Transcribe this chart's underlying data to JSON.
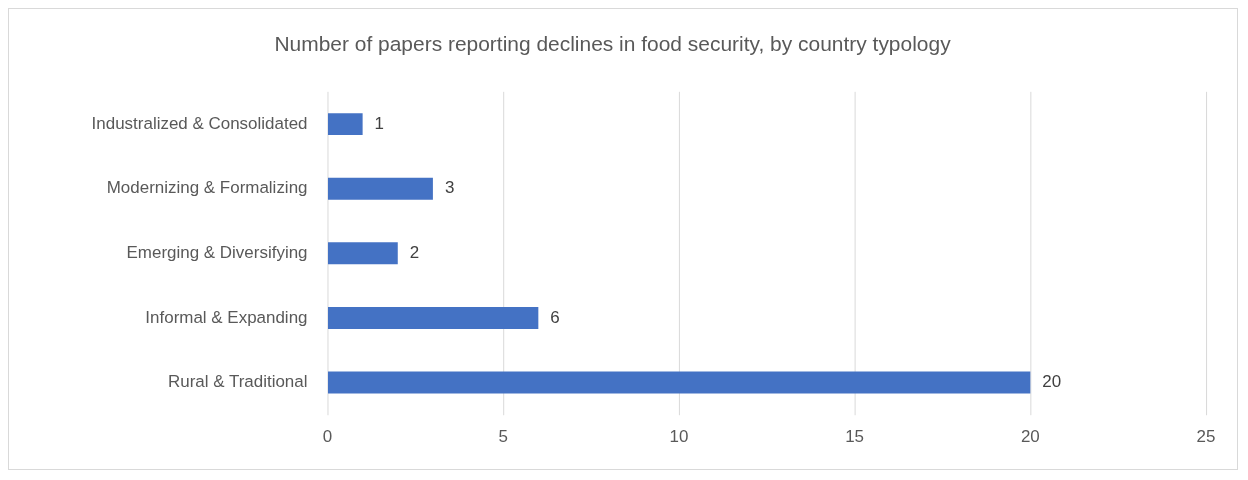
{
  "chart_data": {
    "type": "bar",
    "orientation": "horizontal",
    "title": "Number of papers reporting declines in food security, by country typology",
    "categories": [
      "Industralized & Consolidated",
      "Modernizing & Formalizing",
      "Emerging & Diversifying",
      "Informal & Expanding",
      "Rural & Traditional"
    ],
    "values": [
      1,
      3,
      2,
      6,
      20
    ],
    "color": "#4472c4",
    "xlim": [
      0,
      25
    ],
    "xticks": [
      0,
      5,
      10,
      15,
      20,
      25
    ],
    "grid": "x",
    "data_labels": true
  }
}
